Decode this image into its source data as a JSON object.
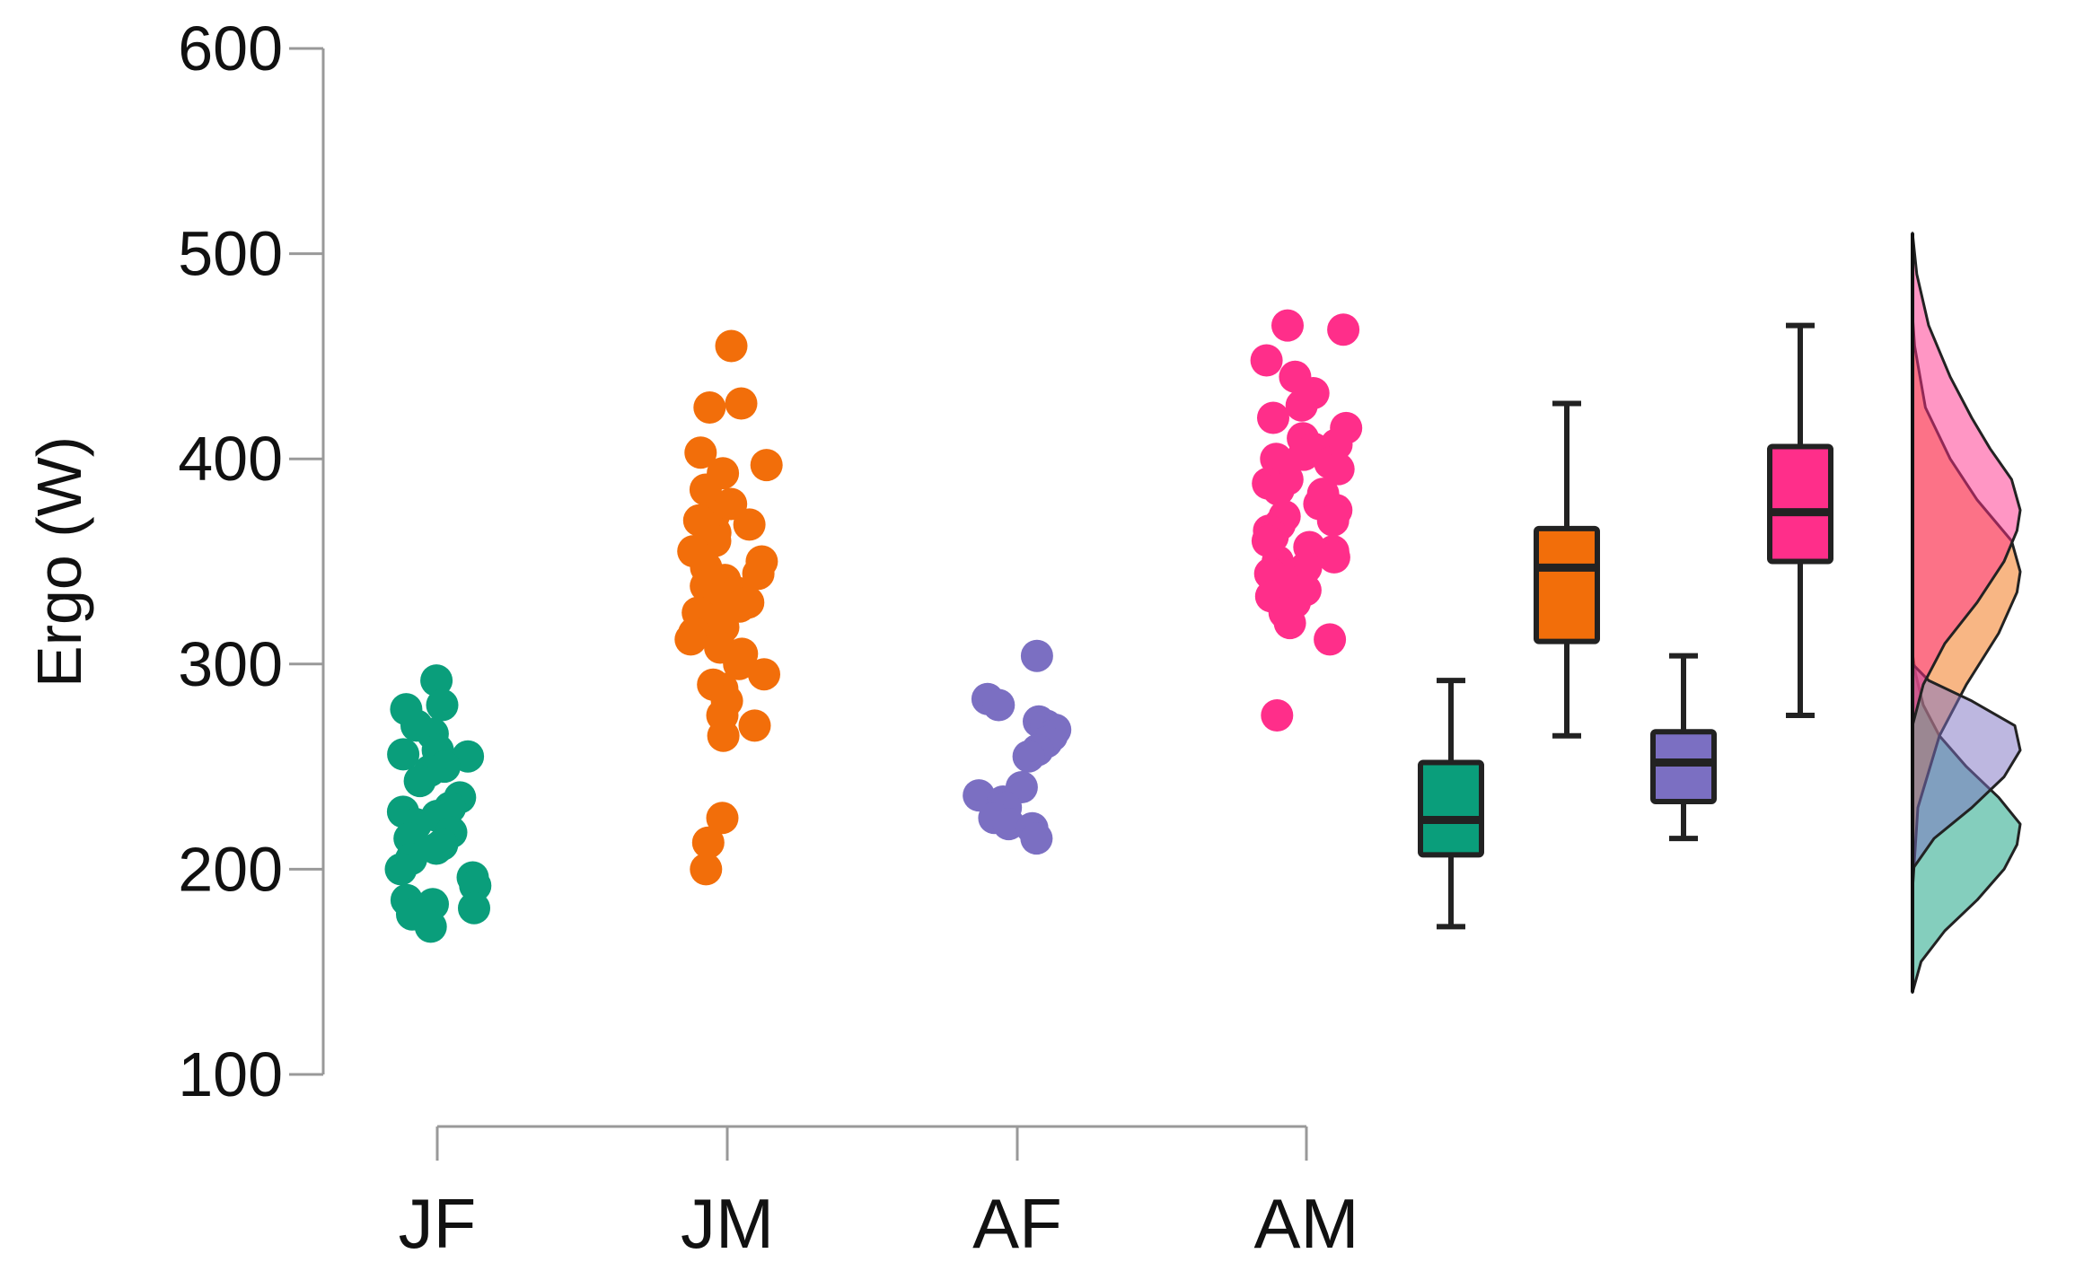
{
  "chart_data": {
    "type": "raincloud",
    "title": "",
    "xlabel": "",
    "ylabel": "Ergo (W)",
    "ylim": [
      100,
      600
    ],
    "yticks": [
      100,
      200,
      300,
      400,
      500,
      600
    ],
    "grid": false,
    "legend": "none",
    "categories": [
      "JF",
      "JM",
      "AF",
      "AM"
    ],
    "series": [
      {
        "name": "JF",
        "color": "#0A9E7B",
        "points": [
          292,
          280,
          278,
          270,
          266,
          258,
          256,
          255,
          250,
          248,
          243,
          235,
          230,
          228,
          226,
          222,
          218,
          215,
          212,
          210,
          205,
          200,
          196,
          192,
          185,
          183,
          181,
          178,
          172
        ],
        "box": {
          "min": 172,
          "q1": 207,
          "median": 224,
          "q3": 252,
          "max": 292
        },
        "density": [
          [
            140,
            0
          ],
          [
            155,
            0.08
          ],
          [
            170,
            0.3
          ],
          [
            185,
            0.6
          ],
          [
            200,
            0.85
          ],
          [
            212,
            0.97
          ],
          [
            222,
            1.0
          ],
          [
            235,
            0.8
          ],
          [
            250,
            0.5
          ],
          [
            265,
            0.25
          ],
          [
            280,
            0.1
          ],
          [
            295,
            0.03
          ],
          [
            305,
            0
          ]
        ]
      },
      {
        "name": "JM",
        "color": "#F26E0A",
        "points": [
          455,
          427,
          425,
          403,
          397,
          393,
          385,
          378,
          372,
          370,
          368,
          364,
          360,
          355,
          350,
          347,
          344,
          341,
          338,
          335,
          332,
          330,
          328,
          325,
          322,
          318,
          315,
          312,
          308,
          305,
          300,
          295,
          290,
          288,
          282,
          275,
          270,
          265,
          225,
          213,
          200
        ],
        "box": {
          "min": 265,
          "q1": 311,
          "median": 347,
          "q3": 366,
          "max": 427
        },
        "density": [
          [
            190,
            0
          ],
          [
            230,
            0.05
          ],
          [
            265,
            0.25
          ],
          [
            290,
            0.5
          ],
          [
            315,
            0.8
          ],
          [
            335,
            0.97
          ],
          [
            345,
            1.0
          ],
          [
            360,
            0.92
          ],
          [
            380,
            0.6
          ],
          [
            400,
            0.35
          ],
          [
            425,
            0.12
          ],
          [
            455,
            0.02
          ],
          [
            470,
            0
          ]
        ]
      },
      {
        "name": "AF",
        "color": "#7B6FC2",
        "points": [
          304,
          283,
          280,
          272,
          270,
          268,
          265,
          262,
          258,
          255,
          240,
          236,
          233,
          230,
          225,
          222,
          220,
          215
        ],
        "box": {
          "min": 215,
          "q1": 233,
          "median": 252,
          "q3": 267,
          "max": 304
        },
        "density": [
          [
            200,
            0
          ],
          [
            215,
            0.2
          ],
          [
            230,
            0.55
          ],
          [
            245,
            0.85
          ],
          [
            258,
            1.0
          ],
          [
            270,
            0.95
          ],
          [
            282,
            0.55
          ],
          [
            292,
            0.15
          ],
          [
            300,
            0
          ]
        ]
      },
      {
        "name": "AM",
        "color": "#FF2E8A",
        "points": [
          465,
          463,
          448,
          440,
          432,
          426,
          420,
          415,
          410,
          407,
          405,
          402,
          400,
          398,
          395,
          390,
          388,
          385,
          383,
          380,
          378,
          375,
          372,
          370,
          368,
          365,
          362,
          360,
          357,
          355,
          352,
          350,
          347,
          344,
          340,
          336,
          333,
          330,
          325,
          320,
          312,
          275
        ],
        "box": {
          "min": 275,
          "q1": 350,
          "median": 374,
          "q3": 406,
          "max": 465
        },
        "density": [
          [
            270,
            0
          ],
          [
            290,
            0.1
          ],
          [
            310,
            0.3
          ],
          [
            330,
            0.6
          ],
          [
            350,
            0.85
          ],
          [
            365,
            0.97
          ],
          [
            375,
            1.0
          ],
          [
            390,
            0.92
          ],
          [
            405,
            0.72
          ],
          [
            420,
            0.55
          ],
          [
            440,
            0.35
          ],
          [
            465,
            0.15
          ],
          [
            490,
            0.04
          ],
          [
            510,
            0
          ]
        ]
      }
    ]
  }
}
